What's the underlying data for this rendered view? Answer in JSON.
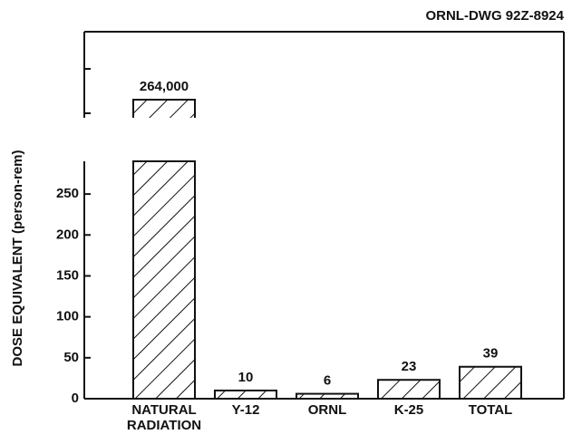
{
  "chart_data": {
    "type": "bar",
    "annotation": "ORNL-DWG 92Z-8924",
    "ylabel": "DOSE EQUIVALENT (person-rem)",
    "categories": [
      "NATURAL RADIATION",
      "Y-12",
      "ORNL",
      "K-25",
      "TOTAL"
    ],
    "values": [
      264000,
      10,
      6,
      23,
      39
    ],
    "value_labels": [
      "264,000",
      "10",
      "6",
      "23",
      "39"
    ],
    "ylim": [
      0,
      290
    ],
    "yticks": [
      0,
      50,
      100,
      150,
      200,
      250
    ],
    "axis_break": true,
    "hatch": true,
    "color": "#111111"
  }
}
